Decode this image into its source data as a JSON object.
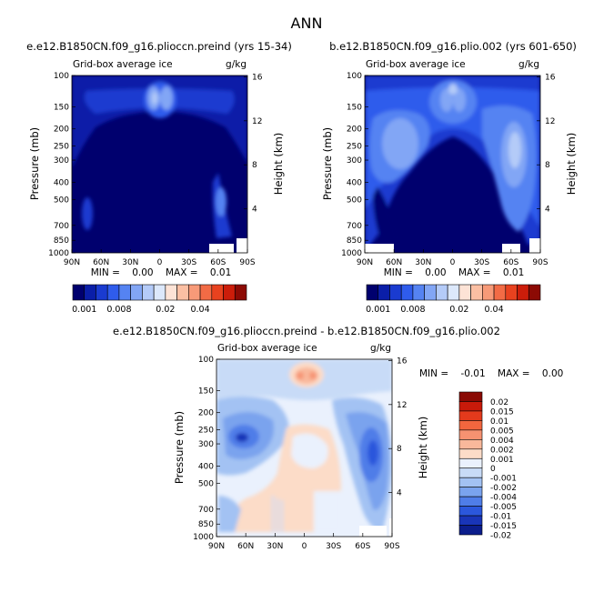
{
  "figure_title": "ANN",
  "panels": {
    "top_left": {
      "title": "e.e12.B1850CN.f09_g16.plioccn.preind (yrs 15-34)",
      "subtitle": "Grid-box average ice",
      "units": "g/kg",
      "min_max": "MIN =    0.00    MAX =    0.01"
    },
    "top_right": {
      "title": "b.e12.B1850CN.f09_g16.plio.002 (yrs 601-650)",
      "subtitle": "Grid-box average ice",
      "units": "g/kg",
      "min_max": "MIN =    0.00    MAX =    0.01"
    },
    "bottom": {
      "title": "e.e12.B1850CN.f09_g16.plioccn.preind - b.e12.B1850CN.f09_g16.plio.002",
      "subtitle": "Grid-box average ice",
      "units": "g/kg",
      "min_max": "MIN =    -0.01    MAX =    0.00"
    }
  },
  "axes": {
    "ylabel": "Pressure (mb)",
    "y2label": "Height (km)",
    "pressure_ticks": [
      "100",
      "150",
      "200",
      "250",
      "300",
      "400",
      "500",
      "700",
      "850",
      "1000"
    ],
    "height_ticks": [
      "16",
      "12",
      "8",
      "4"
    ],
    "lat_ticks": [
      "90N",
      "60N",
      "30N",
      "0",
      "30S",
      "60S",
      "90S"
    ]
  },
  "colorbars": {
    "abs_labels": [
      "0.001",
      "0.008",
      "0.02",
      "0.04"
    ],
    "diff_labels": [
      "0.02",
      "0.015",
      "0.01",
      "0.005",
      "0.004",
      "0.002",
      "0.001",
      "0",
      "-0.001",
      "-0.002",
      "-0.004",
      "-0.005",
      "-0.01",
      "-0.015",
      "-0.02"
    ]
  },
  "colors": {
    "abs_scale": [
      "#00006e",
      "#0a1ea8",
      "#1a3bd0",
      "#2f5cec",
      "#5583f2",
      "#82a6f5",
      "#b4cbf8",
      "#dce8fb",
      "#fde3d6",
      "#fbbfa3",
      "#f79a78",
      "#f26b45",
      "#e8421f",
      "#cc1d0a",
      "#8c0a04"
    ],
    "diff_scale": [
      "#8a0a04",
      "#c81a0a",
      "#e43a1c",
      "#f2663e",
      "#f69271",
      "#f9b89b",
      "#fcdcc8",
      "#eaf1fd",
      "#c8dbf7",
      "#a3c2f3",
      "#7aa3ee",
      "#4f7de8",
      "#2b57dc",
      "#1935b8",
      "#0b1d8c"
    ]
  },
  "chart_data": [
    {
      "type": "heatmap",
      "title": "e.e12.B1850CN.f09_g16.plioccn.preind (yrs 15-34)",
      "subtitle": "Grid-box average ice",
      "units": "g/kg",
      "xlabel": "",
      "ylabel": "Pressure (mb)",
      "y2label": "Height (km)",
      "x_ticks": [
        "90N",
        "60N",
        "30N",
        "0",
        "30S",
        "60S",
        "90S"
      ],
      "y_ticks": [
        100,
        150,
        200,
        250,
        300,
        400,
        500,
        700,
        850,
        1000
      ],
      "y_scale": "log-pressure",
      "contour_levels": [
        0.001,
        0.002,
        0.004,
        0.006,
        0.008,
        0.01,
        0.015,
        0.02,
        0.025,
        0.03,
        0.035,
        0.04,
        0.045,
        0.05
      ],
      "min": 0.0,
      "max": 0.01,
      "features": [
        {
          "lat": 0,
          "pressure": 200,
          "value": 0.008,
          "description": "tropical upper-tropospheric maximum"
        },
        {
          "lat": -60,
          "pressure": 600,
          "value": 0.004,
          "description": "southern mid-latitude band"
        },
        {
          "lat": 70,
          "pressure": 800,
          "value": 0.002,
          "description": "northern high-latitude lower troposphere"
        }
      ]
    },
    {
      "type": "heatmap",
      "title": "b.e12.B1850CN.f09_g16.plio.002 (yrs 601-650)",
      "subtitle": "Grid-box average ice",
      "units": "g/kg",
      "xlabel": "",
      "ylabel": "Pressure (mb)",
      "y2label": "Height (km)",
      "x_ticks": [
        "90N",
        "60N",
        "30N",
        "0",
        "30S",
        "60S",
        "90S"
      ],
      "y_ticks": [
        100,
        150,
        200,
        250,
        300,
        400,
        500,
        700,
        850,
        1000
      ],
      "y_scale": "log-pressure",
      "min": 0.0,
      "max": 0.01,
      "features": [
        {
          "lat": 0,
          "pressure": 200,
          "value": 0.006,
          "description": "tropical upper-tropospheric maximum"
        },
        {
          "lat": 55,
          "pressure": 450,
          "value": 0.006,
          "description": "northern mid-latitude maximum"
        },
        {
          "lat": -60,
          "pressure": 500,
          "value": 0.008,
          "description": "southern mid-latitude maximum"
        }
      ]
    },
    {
      "type": "heatmap",
      "title": "e.e12.B1850CN.f09_g16.plioccn.preind - b.e12.B1850CN.f09_g16.plio.002",
      "subtitle": "Grid-box average ice",
      "units": "g/kg",
      "xlabel": "",
      "ylabel": "Pressure (mb)",
      "y2label": "Height (km)",
      "x_ticks": [
        "90N",
        "60N",
        "30N",
        "0",
        "30S",
        "60S",
        "90S"
      ],
      "y_ticks": [
        100,
        150,
        200,
        250,
        300,
        400,
        500,
        700,
        850,
        1000
      ],
      "y_scale": "log-pressure",
      "contour_levels": [
        -0.02,
        -0.015,
        -0.01,
        -0.005,
        -0.004,
        -0.002,
        -0.001,
        0,
        0.001,
        0.002,
        0.004,
        0.005,
        0.01,
        0.015,
        0.02
      ],
      "min": -0.01,
      "max": 0.0,
      "features": [
        {
          "lat": 0,
          "pressure": 200,
          "value": 0.002,
          "description": "positive tropical upper-level anomaly"
        },
        {
          "lat": 55,
          "pressure": 500,
          "value": -0.005,
          "description": "negative northern mid-latitude anomaly"
        },
        {
          "lat": -65,
          "pressure": 550,
          "value": -0.005,
          "description": "negative southern mid-latitude anomaly"
        },
        {
          "lat": 0,
          "pressure": 750,
          "value": 0.0005,
          "description": "weak positive tropical lower troposphere"
        }
      ]
    }
  ]
}
